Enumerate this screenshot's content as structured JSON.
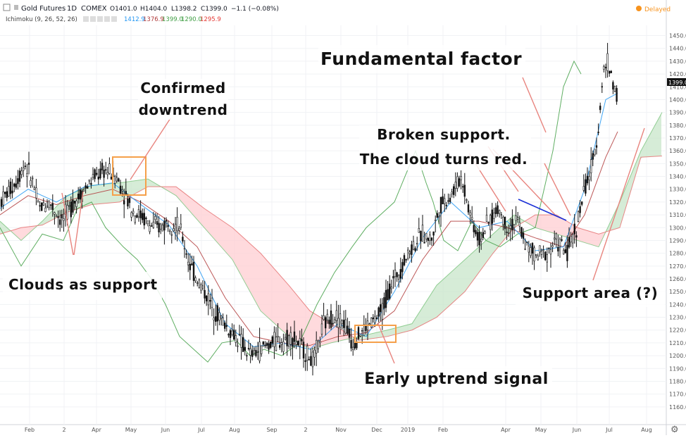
{
  "header": {
    "symbol": "Gold Futures",
    "interval": "1D",
    "exchange": "COMEX",
    "open": "O1401.0",
    "high": "H1404.0",
    "low": "L1398.2",
    "close": "C1399.0",
    "change": "−1.1 (−0.08%)",
    "status": "Delayed",
    "indicator_name": "Ichimoku (9, 26, 52, 26)",
    "indicator_values": [
      "1412.9",
      "1376.9",
      "1399.0",
      "1290.0",
      "1295.9"
    ],
    "price_badge": "1399.0"
  },
  "colors": {
    "conversion": "#2196f3",
    "base": "#b03a3a",
    "lagging": "#43a047",
    "span_a": "#81c784",
    "span_b": "#e57373",
    "cloud_bull": "#c8e6c9",
    "cloud_bear": "#ffcdd2",
    "candle": "#111111",
    "box": "#f5a04a",
    "arrow": "#e8847e",
    "trendline": "#1a2fd6",
    "badge": "#111111",
    "delayed": "#f7931e"
  },
  "chart_data": {
    "type": "candlestick",
    "ylim": [
      1150,
      1458
    ],
    "yticks": [
      1160,
      1170,
      1180,
      1190,
      1200,
      1210,
      1220,
      1230,
      1240,
      1250,
      1260,
      1270,
      1280,
      1290,
      1300,
      1310,
      1320,
      1330,
      1340,
      1350,
      1360,
      1370,
      1380,
      1390,
      1400,
      1410,
      1420,
      1430,
      1440,
      1450
    ],
    "xticks": [
      "Feb",
      "2",
      "Apr",
      "May",
      "Jun",
      "Jul",
      "Aug",
      "Sep",
      "2",
      "Nov",
      "Dec",
      "2019",
      "Feb",
      "Apr",
      "May",
      "Jun",
      "Jul",
      "Aug"
    ],
    "price_path": [
      [
        0,
        1320
      ],
      [
        22,
        1335
      ],
      [
        35,
        1350
      ],
      [
        47,
        1335
      ],
      [
        55,
        1315
      ],
      [
        70,
        1320
      ],
      [
        88,
        1305
      ],
      [
        105,
        1320
      ],
      [
        120,
        1330
      ],
      [
        135,
        1340
      ],
      [
        150,
        1345
      ],
      [
        165,
        1340
      ],
      [
        178,
        1325
      ],
      [
        190,
        1312
      ],
      [
        200,
        1310
      ],
      [
        212,
        1302
      ],
      [
        225,
        1300
      ],
      [
        240,
        1305
      ],
      [
        255,
        1300
      ],
      [
        270,
        1270
      ],
      [
        285,
        1255
      ],
      [
        300,
        1240
      ],
      [
        315,
        1228
      ],
      [
        325,
        1220
      ],
      [
        340,
        1212
      ],
      [
        355,
        1200
      ],
      [
        370,
        1205
      ],
      [
        385,
        1210
      ],
      [
        400,
        1212
      ],
      [
        415,
        1215
      ],
      [
        430,
        1205
      ],
      [
        445,
        1195
      ],
      [
        460,
        1225
      ],
      [
        475,
        1232
      ],
      [
        490,
        1225
      ],
      [
        500,
        1210
      ],
      [
        512,
        1218
      ],
      [
        525,
        1225
      ],
      [
        540,
        1232
      ],
      [
        555,
        1255
      ],
      [
        570,
        1270
      ],
      [
        585,
        1285
      ],
      [
        600,
        1295
      ],
      [
        612,
        1290
      ],
      [
        625,
        1318
      ],
      [
        640,
        1325
      ],
      [
        655,
        1340
      ],
      [
        668,
        1310
      ],
      [
        680,
        1290
      ],
      [
        695,
        1305
      ],
      [
        708,
        1315
      ],
      [
        720,
        1300
      ],
      [
        735,
        1305
      ],
      [
        748,
        1285
      ],
      [
        760,
        1278
      ],
      [
        775,
        1280
      ],
      [
        790,
        1290
      ],
      [
        805,
        1280
      ],
      [
        818,
        1300
      ],
      [
        830,
        1330
      ],
      [
        842,
        1350
      ],
      [
        850,
        1380
      ],
      [
        856,
        1420
      ],
      [
        862,
        1430
      ],
      [
        870,
        1415
      ],
      [
        877,
        1400
      ]
    ],
    "conversion_path": [
      [
        0,
        1315
      ],
      [
        40,
        1330
      ],
      [
        80,
        1320
      ],
      [
        120,
        1332
      ],
      [
        160,
        1335
      ],
      [
        200,
        1318
      ],
      [
        240,
        1302
      ],
      [
        280,
        1270
      ],
      [
        320,
        1225
      ],
      [
        360,
        1207
      ],
      [
        400,
        1210
      ],
      [
        440,
        1205
      ],
      [
        480,
        1225
      ],
      [
        520,
        1215
      ],
      [
        560,
        1250
      ],
      [
        600,
        1292
      ],
      [
        640,
        1320
      ],
      [
        680,
        1300
      ],
      [
        720,
        1305
      ],
      [
        760,
        1282
      ],
      [
        800,
        1285
      ],
      [
        830,
        1330
      ],
      [
        860,
        1400
      ],
      [
        877,
        1405
      ]
    ],
    "base_path": [
      [
        0,
        1310
      ],
      [
        40,
        1325
      ],
      [
        80,
        1318
      ],
      [
        120,
        1325
      ],
      [
        160,
        1330
      ],
      [
        200,
        1320
      ],
      [
        240,
        1305
      ],
      [
        280,
        1285
      ],
      [
        320,
        1245
      ],
      [
        360,
        1215
      ],
      [
        400,
        1210
      ],
      [
        440,
        1208
      ],
      [
        480,
        1215
      ],
      [
        520,
        1218
      ],
      [
        560,
        1235
      ],
      [
        600,
        1275
      ],
      [
        640,
        1305
      ],
      [
        680,
        1305
      ],
      [
        720,
        1300
      ],
      [
        760,
        1292
      ],
      [
        800,
        1285
      ],
      [
        830,
        1310
      ],
      [
        860,
        1355
      ],
      [
        877,
        1375
      ]
    ],
    "lagging_path": [
      [
        0,
        1300
      ],
      [
        30,
        1270
      ],
      [
        60,
        1295
      ],
      [
        90,
        1290
      ],
      [
        110,
        1315
      ],
      [
        130,
        1320
      ],
      [
        150,
        1300
      ],
      [
        175,
        1285
      ],
      [
        195,
        1275
      ],
      [
        215,
        1260
      ],
      [
        235,
        1240
      ],
      [
        255,
        1215
      ],
      [
        275,
        1205
      ],
      [
        295,
        1195
      ],
      [
        315,
        1210
      ],
      [
        335,
        1212
      ],
      [
        355,
        1200
      ],
      [
        375,
        1205
      ],
      [
        400,
        1200
      ],
      [
        425,
        1210
      ],
      [
        450,
        1240
      ],
      [
        475,
        1265
      ],
      [
        500,
        1285
      ],
      [
        520,
        1300
      ],
      [
        540,
        1310
      ],
      [
        560,
        1320
      ],
      [
        575,
        1340
      ],
      [
        590,
        1360
      ],
      [
        605,
        1335
      ],
      [
        615,
        1320
      ],
      [
        630,
        1290
      ],
      [
        650,
        1282
      ],
      [
        670,
        1305
      ],
      [
        690,
        1290
      ],
      [
        710,
        1285
      ],
      [
        735,
        1295
      ],
      [
        760,
        1300
      ],
      [
        785,
        1360
      ],
      [
        800,
        1410
      ],
      [
        815,
        1430
      ],
      [
        825,
        1420
      ]
    ],
    "span_a_path": [
      [
        0,
        1305
      ],
      [
        30,
        1290
      ],
      [
        60,
        1305
      ],
      [
        95,
        1325
      ],
      [
        130,
        1333
      ],
      [
        170,
        1335
      ],
      [
        210,
        1338
      ],
      [
        250,
        1325
      ],
      [
        290,
        1300
      ],
      [
        330,
        1275
      ],
      [
        370,
        1235
      ],
      [
        410,
        1215
      ],
      [
        440,
        1205
      ],
      [
        470,
        1210
      ],
      [
        510,
        1215
      ],
      [
        550,
        1220
      ],
      [
        585,
        1225
      ],
      [
        620,
        1255
      ],
      [
        660,
        1275
      ],
      [
        700,
        1295
      ],
      [
        730,
        1310
      ],
      [
        760,
        1300
      ],
      [
        790,
        1295
      ],
      [
        820,
        1290
      ],
      [
        850,
        1285
      ],
      [
        880,
        1320
      ],
      [
        910,
        1360
      ],
      [
        940,
        1390
      ]
    ],
    "span_b_path": [
      [
        0,
        1295
      ],
      [
        30,
        1300
      ],
      [
        60,
        1302
      ],
      [
        95,
        1312
      ],
      [
        130,
        1318
      ],
      [
        170,
        1320
      ],
      [
        210,
        1332
      ],
      [
        250,
        1332
      ],
      [
        290,
        1315
      ],
      [
        330,
        1300
      ],
      [
        370,
        1280
      ],
      [
        410,
        1255
      ],
      [
        440,
        1235
      ],
      [
        470,
        1225
      ],
      [
        510,
        1212
      ],
      [
        550,
        1215
      ],
      [
        585,
        1220
      ],
      [
        620,
        1230
      ],
      [
        660,
        1250
      ],
      [
        700,
        1280
      ],
      [
        730,
        1300
      ],
      [
        760,
        1310
      ],
      [
        790,
        1310
      ],
      [
        820,
        1300
      ],
      [
        850,
        1295
      ],
      [
        880,
        1300
      ],
      [
        910,
        1355
      ],
      [
        940,
        1356
      ]
    ],
    "annotations": [
      {
        "text": "Confirmed",
        "line": 1
      },
      {
        "text": "downtrend",
        "line": 2
      },
      {
        "text": "Clouds as support"
      },
      {
        "text": "Fundamental factor"
      },
      {
        "text": "Broken support."
      },
      {
        "text": "The cloud turns red."
      },
      {
        "text": "Support area (?)"
      },
      {
        "text": "Early uptrend signal"
      }
    ]
  }
}
